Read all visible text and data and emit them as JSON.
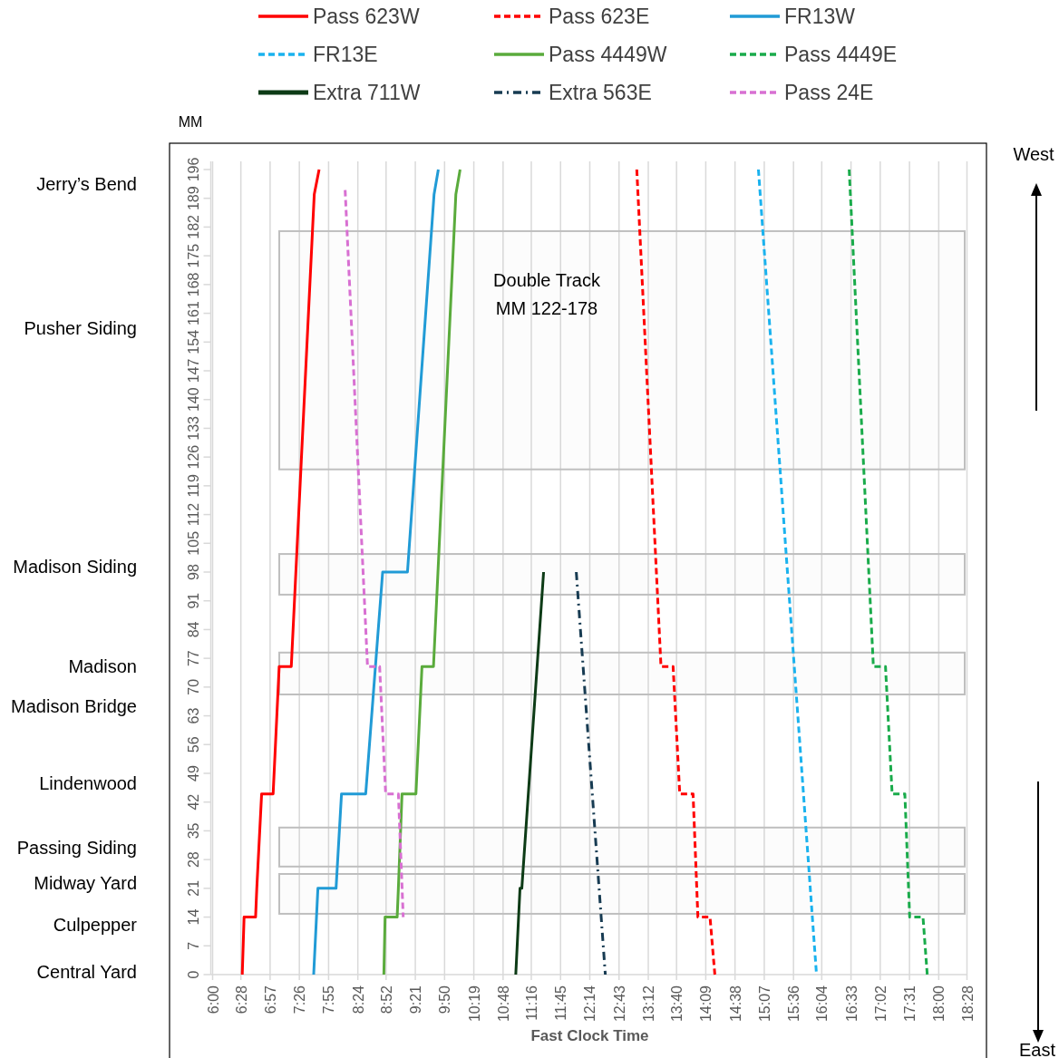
{
  "chart_data": {
    "type": "line",
    "xlabel": "Fast Clock Time",
    "ylabel": "MM",
    "legend": "top",
    "grid": "x",
    "marker": "none",
    "xlim": [
      6,
      18.4667
    ],
    "ylim": [
      0,
      198
    ],
    "xticks": [
      {
        "value": 6,
        "label": "6:00"
      },
      {
        "value": 6.4667,
        "label": "6:28"
      },
      {
        "value": 6.95,
        "label": "6:57"
      },
      {
        "value": 7.4333,
        "label": "7:26"
      },
      {
        "value": 7.9167,
        "label": "7:55"
      },
      {
        "value": 8.4,
        "label": "8:24"
      },
      {
        "value": 8.8667,
        "label": "8:52"
      },
      {
        "value": 9.35,
        "label": "9:21"
      },
      {
        "value": 9.8333,
        "label": "9:50"
      },
      {
        "value": 10.3167,
        "label": "10:19"
      },
      {
        "value": 10.8,
        "label": "10:48"
      },
      {
        "value": 11.2667,
        "label": "11:16"
      },
      {
        "value": 11.75,
        "label": "11:45"
      },
      {
        "value": 12.2333,
        "label": "12:14"
      },
      {
        "value": 12.7167,
        "label": "12:43"
      },
      {
        "value": 13.2,
        "label": "13:12"
      },
      {
        "value": 13.6667,
        "label": "13:40"
      },
      {
        "value": 14.15,
        "label": "14:09"
      },
      {
        "value": 14.6333,
        "label": "14:38"
      },
      {
        "value": 15.1167,
        "label": "15:07"
      },
      {
        "value": 15.6,
        "label": "15:36"
      },
      {
        "value": 16.0667,
        "label": "16:04"
      },
      {
        "value": 16.55,
        "label": "16:33"
      },
      {
        "value": 17.0333,
        "label": "17:02"
      },
      {
        "value": 17.5167,
        "label": "17:31"
      },
      {
        "value": 18,
        "label": "18:00"
      },
      {
        "value": 18.4667,
        "label": "18:28"
      }
    ],
    "yticks": [
      0,
      7,
      14,
      21,
      28,
      35,
      42,
      49,
      56,
      63,
      70,
      77,
      84,
      91,
      98,
      105,
      112,
      119,
      126,
      133,
      140,
      147,
      154,
      161,
      168,
      175,
      182,
      189,
      196
    ],
    "series": [
      {
        "name": "Pass 623W",
        "color": "#ff0000",
        "line_style": "solid",
        "x": [
          6.49,
          6.52,
          6.71,
          6.73,
          6.81,
          7.0,
          7.1,
          7.3,
          7.68,
          7.76
        ],
        "values": [
          0,
          14,
          14,
          21,
          44,
          44,
          75,
          75,
          190,
          196
        ]
      },
      {
        "name": "Pass 623E",
        "color": "#ff0000",
        "line_style": "dashed",
        "x": [
          13.01,
          13.41,
          13.61,
          13.72,
          13.94,
          14.02,
          14.22,
          14.3
        ],
        "values": [
          196,
          75,
          75,
          44,
          44,
          14,
          14,
          0
        ]
      },
      {
        "name": "FR13W",
        "color": "#219bd6",
        "line_style": "solid",
        "x": [
          7.67,
          7.74,
          8.04,
          8.13,
          8.53,
          8.81,
          9.22,
          9.66,
          9.73
        ],
        "values": [
          0,
          21,
          21,
          44,
          44,
          98,
          98,
          190,
          196
        ]
      },
      {
        "name": "FR13E",
        "color": "#1ab2ee",
        "line_style": "dashed",
        "x": [
          15.02,
          15.98
        ],
        "values": [
          196,
          0
        ]
      },
      {
        "name": "Pass 4449W",
        "color": "#5aab3c",
        "line_style": "solid",
        "x": [
          8.83,
          8.85,
          9.05,
          9.07,
          9.13,
          9.36,
          9.46,
          9.65,
          10.02,
          10.09
        ],
        "values": [
          0,
          14,
          14,
          21,
          44,
          44,
          75,
          75,
          190,
          196
        ]
      },
      {
        "name": "Pass 4449E",
        "color": "#1aab4b",
        "line_style": "dashed",
        "x": [
          16.52,
          16.92,
          17.12,
          17.23,
          17.44,
          17.52,
          17.74,
          17.81
        ],
        "values": [
          196,
          75,
          75,
          44,
          44,
          14,
          14,
          0
        ]
      },
      {
        "name": "Extra 711W",
        "color": "#0d3b16",
        "line_style": "solid",
        "x": [
          11.01,
          11.08,
          11.11,
          11.47
        ],
        "values": [
          0,
          21,
          21,
          98
        ]
      },
      {
        "name": "Extra 563E",
        "color": "#173b52",
        "line_style": "dashdot",
        "x": [
          12.01,
          12.49
        ],
        "values": [
          98,
          0
        ]
      },
      {
        "name": "Pass 24E",
        "color": "#d870d2",
        "line_style": "dashed",
        "x": [
          8.19,
          8.56,
          8.76,
          8.86,
          9.07,
          9.15
        ],
        "values": [
          191,
          75,
          75,
          44,
          44,
          14
        ]
      }
    ],
    "bands": [
      {
        "axis": "y",
        "from": 123,
        "to": 181,
        "label": "Double Track\nMM 122-178",
        "color": "#bfbfbf"
      },
      {
        "axis": "y",
        "from": 92.5,
        "to": 102.4,
        "color": "#bfbfbf"
      },
      {
        "axis": "y",
        "from": 68.2,
        "to": 78.4,
        "color": "#bfbfbf"
      },
      {
        "axis": "y",
        "from": 26.3,
        "to": 35.8,
        "color": "#bfbfbf"
      },
      {
        "axis": "y",
        "from": 14.8,
        "to": 24.5,
        "color": "#bfbfbf"
      }
    ],
    "annotations": [
      "Jerry’s Bend",
      "Pusher Siding",
      "Madison Siding",
      "Madison",
      "Madison Bridge",
      "Lindenwood",
      "Passing Siding",
      "Midway Yard",
      "Culpepper",
      "Central Yard",
      "West",
      "East"
    ]
  }
}
